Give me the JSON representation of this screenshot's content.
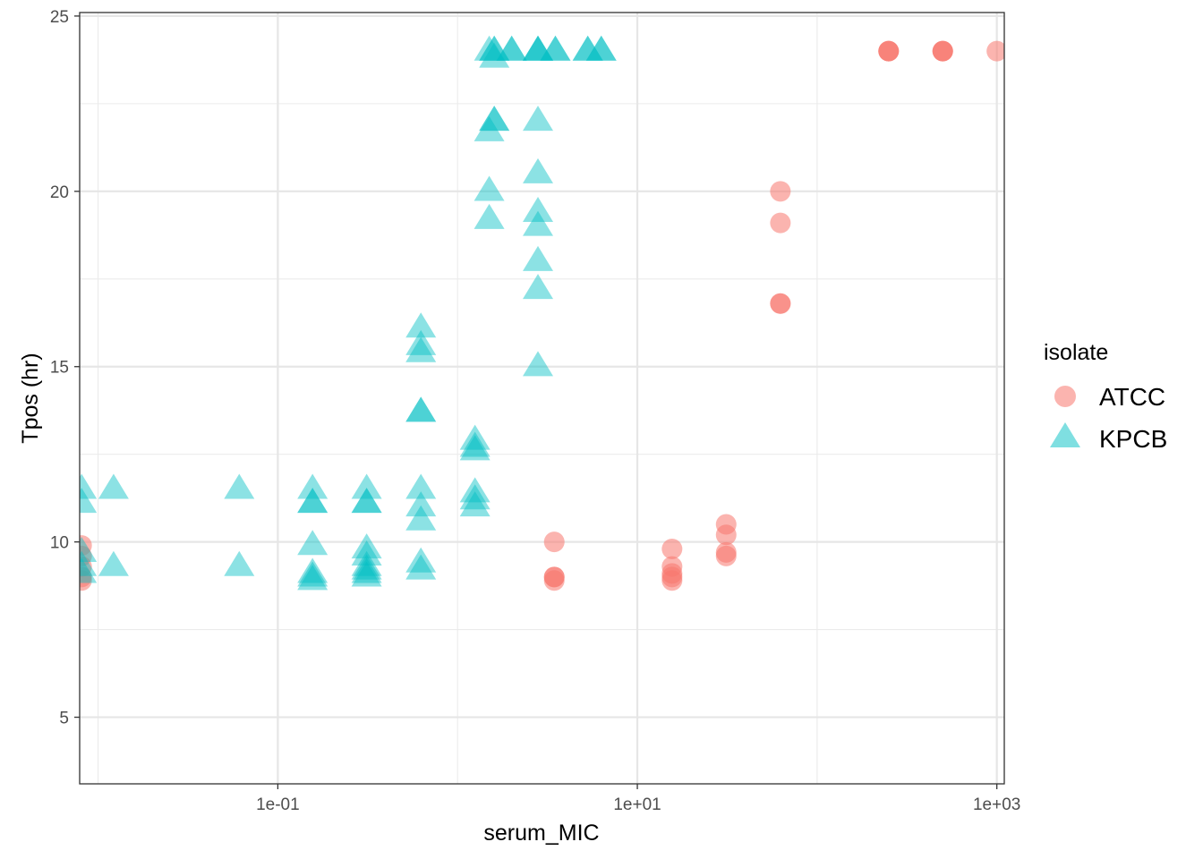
{
  "chart_data": {
    "type": "scatter",
    "xlabel": "serum_MIC",
    "ylabel": "Tpos (hr)",
    "x_scale": "log10",
    "xlim": [
      0.0079,
      1100
    ],
    "ylim": [
      3.1,
      25.1
    ],
    "x_ticks": [
      {
        "value": 0.1,
        "label": "1e-01"
      },
      {
        "value": 10,
        "label": "1e+01"
      },
      {
        "value": 1000,
        "label": "1e+03"
      }
    ],
    "y_ticks": [
      {
        "value": 5,
        "label": "5"
      },
      {
        "value": 10,
        "label": "10"
      },
      {
        "value": 15,
        "label": "15"
      },
      {
        "value": 20,
        "label": "20"
      },
      {
        "value": 25,
        "label": "25"
      }
    ],
    "grid": true,
    "legend": {
      "title": "isolate",
      "position": "right"
    },
    "series": [
      {
        "name": "ATCC",
        "color": "#F8766D",
        "marker": "circle",
        "points": [
          [
            0.0081,
            9.9
          ],
          [
            0.0081,
            9.6
          ],
          [
            0.0081,
            9.3
          ],
          [
            0.0081,
            9.0
          ],
          [
            0.0081,
            8.9
          ],
          [
            3.45,
            10.0
          ],
          [
            3.45,
            9.0
          ],
          [
            3.45,
            8.9
          ],
          [
            3.45,
            9.0
          ],
          [
            15.6,
            9.8
          ],
          [
            15.6,
            9.3
          ],
          [
            15.6,
            9.0
          ],
          [
            15.6,
            8.9
          ],
          [
            15.6,
            9.1
          ],
          [
            31.2,
            10.5
          ],
          [
            31.2,
            10.2
          ],
          [
            31.2,
            9.7
          ],
          [
            31.2,
            9.6
          ],
          [
            62.5,
            20.0
          ],
          [
            62.5,
            19.1
          ],
          [
            62.5,
            16.8
          ],
          [
            62.5,
            16.8
          ],
          [
            250,
            24.0
          ],
          [
            250,
            24.0
          ],
          [
            250,
            24.0
          ],
          [
            500,
            24.0
          ],
          [
            500,
            24.0
          ],
          [
            500,
            24.0
          ],
          [
            1000,
            24.0
          ]
        ]
      },
      {
        "name": "KPCB",
        "color": "#00BFC4",
        "marker": "triangle",
        "points": [
          [
            0.0081,
            11.5
          ],
          [
            0.0081,
            11.1
          ],
          [
            0.0081,
            9.7
          ],
          [
            0.0081,
            9.3
          ],
          [
            0.0081,
            9.1
          ],
          [
            0.0122,
            11.5
          ],
          [
            0.0122,
            9.3
          ],
          [
            0.061,
            11.5
          ],
          [
            0.061,
            9.3
          ],
          [
            0.156,
            11.5
          ],
          [
            0.156,
            11.1
          ],
          [
            0.156,
            11.1
          ],
          [
            0.156,
            9.9
          ],
          [
            0.156,
            9.0
          ],
          [
            0.156,
            8.9
          ],
          [
            0.156,
            9.1
          ],
          [
            0.312,
            11.5
          ],
          [
            0.312,
            11.1
          ],
          [
            0.312,
            11.1
          ],
          [
            0.312,
            9.8
          ],
          [
            0.312,
            9.6
          ],
          [
            0.312,
            9.3
          ],
          [
            0.312,
            9.1
          ],
          [
            0.312,
            9.0
          ],
          [
            0.312,
            9.2
          ],
          [
            0.625,
            16.1
          ],
          [
            0.625,
            15.6
          ],
          [
            0.625,
            15.4
          ],
          [
            0.625,
            13.7
          ],
          [
            0.625,
            13.7
          ],
          [
            0.625,
            11.5
          ],
          [
            0.625,
            11.0
          ],
          [
            0.625,
            10.6
          ],
          [
            0.625,
            9.4
          ],
          [
            0.625,
            9.2
          ],
          [
            1.25,
            12.9
          ],
          [
            1.25,
            12.7
          ],
          [
            1.25,
            12.6
          ],
          [
            1.25,
            11.4
          ],
          [
            1.25,
            11.2
          ],
          [
            1.25,
            11.0
          ],
          [
            1.5,
            20.0
          ],
          [
            1.5,
            19.2
          ],
          [
            1.5,
            21.7
          ],
          [
            1.5,
            24.0
          ],
          [
            1.6,
            22.0
          ],
          [
            1.6,
            22.0
          ],
          [
            1.6,
            24.0
          ],
          [
            1.6,
            24.0
          ],
          [
            1.6,
            23.8
          ],
          [
            2.0,
            24.0
          ],
          [
            2.0,
            24.0
          ],
          [
            2.8,
            24.0
          ],
          [
            2.8,
            24.0
          ],
          [
            2.8,
            24.0
          ],
          [
            2.8,
            22.0
          ],
          [
            2.8,
            20.5
          ],
          [
            2.8,
            19.4
          ],
          [
            2.8,
            19.0
          ],
          [
            2.8,
            18.0
          ],
          [
            2.8,
            17.2
          ],
          [
            2.8,
            15.0
          ],
          [
            3.5,
            24.0
          ],
          [
            3.5,
            24.0
          ],
          [
            5.3,
            24.0
          ],
          [
            5.3,
            24.0
          ],
          [
            6.3,
            24.0
          ],
          [
            6.3,
            24.0
          ]
        ]
      }
    ]
  }
}
